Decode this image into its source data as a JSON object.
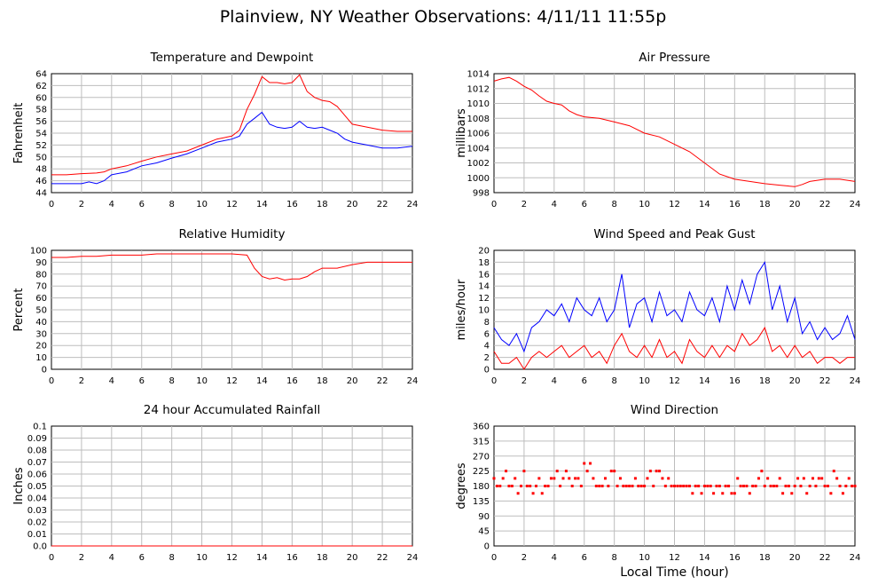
{
  "page": {
    "title": "Plainview, NY Weather Observations: 4/11/11 11:55p"
  },
  "chart_data": [
    {
      "id": "temp",
      "type": "line",
      "title": "Temperature and Dewpoint",
      "xlabel": "",
      "ylabel": "Fahrenheit",
      "xlim": [
        0,
        24
      ],
      "ylim": [
        44,
        64
      ],
      "xticks": [
        "0",
        "2",
        "4",
        "6",
        "8",
        "10",
        "12",
        "14",
        "16",
        "18",
        "20",
        "22",
        "24"
      ],
      "yticks": [
        "44",
        "46",
        "48",
        "50",
        "52",
        "54",
        "56",
        "58",
        "60",
        "62",
        "64"
      ],
      "grid": true,
      "series": [
        {
          "color": "#ff0000",
          "x": [
            0,
            1,
            2,
            3,
            3.5,
            4,
            5,
            6,
            7,
            8,
            9,
            10,
            11,
            12,
            12.5,
            13,
            13.5,
            14,
            14.5,
            15,
            15.5,
            16,
            16.5,
            17,
            17.5,
            18,
            18.5,
            19,
            19.5,
            20,
            21,
            22,
            23,
            24
          ],
          "y": [
            47,
            47,
            47.2,
            47.3,
            47.5,
            48,
            48.5,
            49.3,
            50,
            50.5,
            51,
            52,
            53,
            53.5,
            54.5,
            58,
            60.5,
            63.5,
            62.5,
            62.5,
            62.3,
            62.5,
            63.8,
            61,
            60,
            59.5,
            59.3,
            58.5,
            57,
            55.5,
            55,
            54.5,
            54.3,
            54.3
          ]
        },
        {
          "color": "#0000ff",
          "x": [
            0,
            1,
            2,
            2.5,
            3,
            3.5,
            4,
            5,
            6,
            7,
            8,
            9,
            10,
            11,
            12,
            12.5,
            13,
            13.5,
            14,
            14.5,
            15,
            15.5,
            16,
            16.5,
            17,
            17.5,
            18,
            18.5,
            19,
            19.5,
            20,
            21,
            22,
            23,
            24
          ],
          "y": [
            45.5,
            45.5,
            45.5,
            45.8,
            45.5,
            46,
            47,
            47.5,
            48.5,
            49,
            49.8,
            50.5,
            51.5,
            52.5,
            53,
            53.5,
            55.5,
            56.5,
            57.5,
            55.5,
            55,
            54.8,
            55,
            56,
            55,
            54.8,
            55,
            54.5,
            54,
            53,
            52.5,
            52,
            51.5,
            51.5,
            51.8
          ]
        }
      ]
    },
    {
      "id": "pressure",
      "type": "line",
      "title": "Air Pressure",
      "xlabel": "",
      "ylabel": "millibars",
      "xlim": [
        0,
        24
      ],
      "ylim": [
        998,
        1014
      ],
      "xticks": [
        "0",
        "2",
        "4",
        "6",
        "8",
        "10",
        "12",
        "14",
        "16",
        "18",
        "20",
        "22",
        "24"
      ],
      "yticks": [
        "998",
        "1000",
        "1002",
        "1004",
        "1006",
        "1008",
        "1010",
        "1012",
        "1014"
      ],
      "grid": true,
      "series": [
        {
          "color": "#ff0000",
          "x": [
            0,
            0.5,
            1,
            1.5,
            2,
            2.5,
            3,
            3.5,
            4,
            4.5,
            5,
            5.5,
            6,
            7,
            8,
            9,
            10,
            11,
            12,
            13,
            14,
            15,
            16,
            17,
            18,
            19,
            20,
            20.5,
            21,
            22,
            23,
            24
          ],
          "y": [
            1013,
            1013.3,
            1013.5,
            1013,
            1012.3,
            1011.8,
            1011,
            1010.3,
            1010,
            1009.8,
            1009,
            1008.5,
            1008.2,
            1008,
            1007.5,
            1007,
            1006,
            1005.5,
            1004.5,
            1003.5,
            1002,
            1000.5,
            999.8,
            999.5,
            999.2,
            999,
            998.8,
            999.1,
            999.5,
            999.8,
            999.8,
            999.5
          ]
        }
      ]
    },
    {
      "id": "humidity",
      "type": "line",
      "title": "Relative Humidity",
      "xlabel": "",
      "ylabel": "Percent",
      "xlim": [
        0,
        24
      ],
      "ylim": [
        0,
        100
      ],
      "xticks": [
        "0",
        "2",
        "4",
        "6",
        "8",
        "10",
        "12",
        "14",
        "16",
        "18",
        "20",
        "22",
        "24"
      ],
      "yticks": [
        "0",
        "10",
        "20",
        "30",
        "40",
        "50",
        "60",
        "70",
        "80",
        "90",
        "100"
      ],
      "grid": true,
      "series": [
        {
          "color": "#ff0000",
          "x": [
            0,
            1,
            2,
            3,
            4,
            5,
            6,
            7,
            8,
            9,
            10,
            11,
            12,
            13,
            13.5,
            14,
            14.5,
            15,
            15.5,
            16,
            16.5,
            17,
            17.5,
            18,
            19,
            20,
            21,
            22,
            23,
            24
          ],
          "y": [
            94,
            94,
            95,
            95,
            96,
            96,
            96,
            97,
            97,
            97,
            97,
            97,
            97,
            96,
            85,
            78,
            76,
            77,
            75,
            76,
            76,
            78,
            82,
            85,
            85,
            88,
            90,
            90,
            90,
            90
          ]
        }
      ]
    },
    {
      "id": "wind",
      "type": "line",
      "title": "Wind Speed and Peak Gust",
      "xlabel": "",
      "ylabel": "miles/hour",
      "xlim": [
        0,
        24
      ],
      "ylim": [
        0,
        20
      ],
      "xticks": [
        "0",
        "2",
        "4",
        "6",
        "8",
        "10",
        "12",
        "14",
        "16",
        "18",
        "20",
        "22",
        "24"
      ],
      "yticks": [
        "0",
        "2",
        "4",
        "6",
        "8",
        "10",
        "12",
        "14",
        "16",
        "18",
        "20"
      ],
      "grid": true,
      "series": [
        {
          "color": "#0000ff",
          "x": [
            0,
            0.5,
            1,
            1.5,
            2,
            2.5,
            3,
            3.5,
            4,
            4.5,
            5,
            5.5,
            6,
            6.5,
            7,
            7.5,
            8,
            8.5,
            9,
            9.5,
            10,
            10.5,
            11,
            11.5,
            12,
            12.5,
            13,
            13.5,
            14,
            14.5,
            15,
            15.5,
            16,
            16.5,
            17,
            17.5,
            18,
            18.5,
            19,
            19.5,
            20,
            20.5,
            21,
            21.5,
            22,
            22.5,
            23,
            23.5,
            24
          ],
          "y": [
            7,
            5,
            4,
            6,
            3,
            7,
            8,
            10,
            9,
            11,
            8,
            12,
            10,
            9,
            12,
            8,
            10,
            16,
            7,
            11,
            12,
            8,
            13,
            9,
            10,
            8,
            13,
            10,
            9,
            12,
            8,
            14,
            10,
            15,
            11,
            16,
            18,
            10,
            14,
            8,
            12,
            6,
            8,
            5,
            7,
            5,
            6,
            9,
            5
          ]
        },
        {
          "color": "#ff0000",
          "x": [
            0,
            0.5,
            1,
            1.5,
            2,
            2.5,
            3,
            3.5,
            4,
            4.5,
            5,
            5.5,
            6,
            6.5,
            7,
            7.5,
            8,
            8.5,
            9,
            9.5,
            10,
            10.5,
            11,
            11.5,
            12,
            12.5,
            13,
            13.5,
            14,
            14.5,
            15,
            15.5,
            16,
            16.5,
            17,
            17.5,
            18,
            18.5,
            19,
            19.5,
            20,
            20.5,
            21,
            21.5,
            22,
            22.5,
            23,
            23.5,
            24
          ],
          "y": [
            3,
            1,
            1,
            2,
            0,
            2,
            3,
            2,
            3,
            4,
            2,
            3,
            4,
            2,
            3,
            1,
            4,
            6,
            3,
            2,
            4,
            2,
            5,
            2,
            3,
            1,
            5,
            3,
            2,
            4,
            2,
            4,
            3,
            6,
            4,
            5,
            7,
            3,
            4,
            2,
            4,
            2,
            3,
            1,
            2,
            2,
            1,
            2,
            2
          ]
        }
      ]
    },
    {
      "id": "rain",
      "type": "line",
      "title": "24 hour Accumulated Rainfall",
      "xlabel": "",
      "ylabel": "Inches",
      "xlim": [
        0,
        24
      ],
      "ylim": [
        0,
        0.1
      ],
      "xticks": [
        "0",
        "2",
        "4",
        "6",
        "8",
        "10",
        "12",
        "14",
        "16",
        "18",
        "20",
        "22",
        "24"
      ],
      "yticks": [
        "0.0",
        "0.01",
        "0.02",
        "0.03",
        "0.04",
        "0.05",
        "0.06",
        "0.07",
        "0.08",
        "0.09",
        "0.1"
      ],
      "grid": true,
      "series": [
        {
          "color": "#ff0000",
          "x": [
            0,
            24
          ],
          "y": [
            0,
            0
          ]
        }
      ]
    },
    {
      "id": "direction",
      "type": "scatter",
      "title": "Wind Direction",
      "xlabel": "Local Time (hour)",
      "ylabel": "degrees",
      "xlim": [
        0,
        24
      ],
      "ylim": [
        0,
        360
      ],
      "xticks": [
        "0",
        "2",
        "4",
        "6",
        "8",
        "10",
        "12",
        "14",
        "16",
        "18",
        "20",
        "22",
        "24"
      ],
      "yticks": [
        "0",
        "45",
        "90",
        "135",
        "180",
        "225",
        "270",
        "315",
        "360"
      ],
      "grid": true,
      "series": [
        {
          "color": "#ff0000",
          "x": [
            0,
            0.2,
            0.4,
            0.6,
            0.8,
            1,
            1.2,
            1.4,
            1.6,
            1.8,
            2,
            2.2,
            2.4,
            2.6,
            2.8,
            3,
            3.2,
            3.4,
            3.6,
            3.8,
            4,
            4.2,
            4.4,
            4.6,
            4.8,
            5,
            5.2,
            5.4,
            5.6,
            5.8,
            6,
            6.2,
            6.4,
            6.6,
            6.8,
            7,
            7.2,
            7.4,
            7.6,
            7.8,
            8,
            8.2,
            8.4,
            8.6,
            8.8,
            9,
            9.2,
            9.4,
            9.6,
            9.8,
            10,
            10.2,
            10.4,
            10.6,
            10.8,
            11,
            11.2,
            11.4,
            11.6,
            11.8,
            12,
            12.2,
            12.4,
            12.6,
            12.8,
            13,
            13.2,
            13.4,
            13.6,
            13.8,
            14,
            14.2,
            14.4,
            14.6,
            14.8,
            15,
            15.2,
            15.4,
            15.6,
            15.8,
            16,
            16.2,
            16.4,
            16.6,
            16.8,
            17,
            17.2,
            17.4,
            17.6,
            17.8,
            18,
            18.2,
            18.4,
            18.6,
            18.8,
            19,
            19.2,
            19.4,
            19.6,
            19.8,
            20,
            20.2,
            20.4,
            20.6,
            20.8,
            21,
            21.2,
            21.4,
            21.6,
            21.8,
            22,
            22.2,
            22.4,
            22.6,
            22.8,
            23,
            23.2,
            23.4,
            23.6,
            23.8,
            24
          ],
          "y": [
            203,
            180,
            180,
            203,
            225,
            180,
            180,
            203,
            158,
            180,
            225,
            180,
            180,
            158,
            180,
            203,
            158,
            180,
            180,
            203,
            203,
            225,
            180,
            203,
            225,
            203,
            180,
            203,
            203,
            180,
            248,
            225,
            248,
            203,
            180,
            180,
            180,
            203,
            180,
            225,
            225,
            180,
            203,
            180,
            180,
            180,
            180,
            203,
            180,
            180,
            180,
            203,
            225,
            180,
            225,
            225,
            203,
            180,
            203,
            180,
            180,
            180,
            180,
            180,
            180,
            180,
            158,
            180,
            180,
            158,
            180,
            180,
            180,
            158,
            180,
            180,
            158,
            180,
            180,
            158,
            158,
            203,
            180,
            180,
            180,
            158,
            180,
            180,
            203,
            225,
            180,
            203,
            180,
            180,
            180,
            203,
            158,
            180,
            180,
            158,
            180,
            203,
            180,
            203,
            158,
            180,
            203,
            180,
            203,
            203,
            180,
            180,
            158,
            225,
            203,
            180,
            158,
            180,
            203,
            180,
            180
          ]
        }
      ]
    }
  ]
}
